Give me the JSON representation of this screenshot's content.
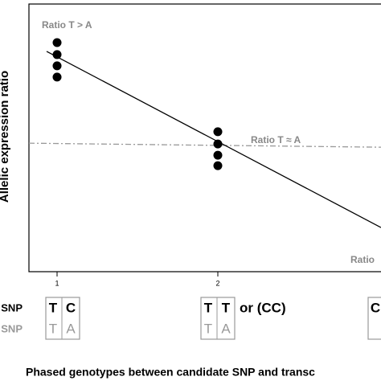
{
  "chart_data": {
    "type": "scatter",
    "y_label": "Allelic expression ratio",
    "x_label": "Phased genotypes between candidate SNP and transc",
    "annotations": [
      "Ratio T > A",
      "Ratio T ≈ A",
      "Ratio"
    ],
    "xlim": [
      0.825,
      3.015
    ],
    "ylim": [
      0,
      1
    ],
    "xticks": [
      1,
      2
    ],
    "series": [
      {
        "kind": "points",
        "color": "#000000",
        "x": [
          1,
          1,
          1,
          1,
          2,
          2,
          2,
          2
        ],
        "values": [
          0.856,
          0.811,
          0.769,
          0.727,
          0.523,
          0.477,
          0.435,
          0.396
        ]
      },
      {
        "kind": "line",
        "color": "#000000",
        "x": [
          0.935,
          3.015
        ],
        "values": [
          0.823,
          0.165
        ]
      },
      {
        "kind": "dashdot",
        "color": "#999999",
        "x": [
          0.825,
          3.015
        ],
        "values": [
          0.48,
          0.465
        ]
      }
    ],
    "row_labels": [
      "SNP",
      "SNP"
    ],
    "genotypes": [
      {
        "top": [
          "T",
          "C"
        ],
        "bottom": [
          "T",
          "A"
        ]
      },
      {
        "top": [
          "T",
          "T"
        ],
        "bottom": [
          "T",
          "A"
        ],
        "note": "or (CC)"
      },
      {
        "top": [
          "C"
        ],
        "bottom": [
          ""
        ]
      }
    ]
  }
}
